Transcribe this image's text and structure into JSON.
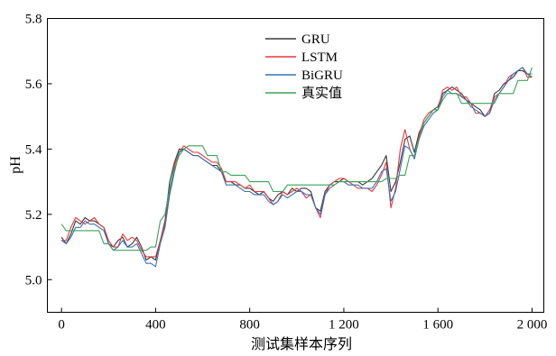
{
  "chart_data": {
    "type": "line",
    "xlabel": "测试集样本序列",
    "ylabel": "pH",
    "xlim": [
      -60,
      2050
    ],
    "ylim": [
      4.9,
      5.8
    ],
    "xticks": [
      0,
      400,
      800,
      1200,
      1600,
      2000
    ],
    "xtick_labels": [
      "0",
      "400",
      "800",
      "1 200",
      "1 600",
      "2 000"
    ],
    "yticks": [
      5.0,
      5.2,
      5.4,
      5.6,
      5.8
    ],
    "ytick_labels": [
      "5.0",
      "5.2",
      "5.4",
      "5.6",
      "5.8"
    ],
    "legend": "top-center",
    "grid": false,
    "x": [
      0,
      20,
      40,
      60,
      80,
      100,
      120,
      140,
      160,
      180,
      200,
      220,
      240,
      260,
      280,
      300,
      320,
      340,
      360,
      380,
      400,
      420,
      440,
      460,
      480,
      500,
      520,
      540,
      560,
      580,
      600,
      620,
      640,
      660,
      680,
      700,
      720,
      740,
      760,
      780,
      800,
      820,
      840,
      860,
      880,
      900,
      920,
      940,
      960,
      980,
      1000,
      1020,
      1040,
      1060,
      1080,
      1100,
      1120,
      1140,
      1160,
      1180,
      1200,
      1220,
      1240,
      1260,
      1280,
      1300,
      1320,
      1340,
      1360,
      1380,
      1400,
      1420,
      1440,
      1460,
      1480,
      1500,
      1520,
      1540,
      1560,
      1580,
      1600,
      1620,
      1640,
      1660,
      1680,
      1700,
      1720,
      1740,
      1760,
      1780,
      1800,
      1820,
      1840,
      1860,
      1880,
      1900,
      1920,
      1940,
      1960,
      1980,
      2000
    ],
    "series": [
      {
        "name": "GRU",
        "color": "#3a3a3a",
        "values": [
          5.13,
          5.11,
          5.14,
          5.18,
          5.17,
          5.19,
          5.18,
          5.18,
          5.17,
          5.16,
          5.11,
          5.1,
          5.12,
          5.13,
          5.1,
          5.11,
          5.13,
          5.1,
          5.06,
          5.07,
          5.06,
          5.12,
          5.18,
          5.3,
          5.36,
          5.4,
          5.4,
          5.39,
          5.38,
          5.38,
          5.37,
          5.36,
          5.35,
          5.35,
          5.33,
          5.3,
          5.3,
          5.29,
          5.29,
          5.28,
          5.28,
          5.27,
          5.26,
          5.27,
          5.25,
          5.24,
          5.26,
          5.27,
          5.26,
          5.28,
          5.27,
          5.28,
          5.28,
          5.27,
          5.22,
          5.21,
          5.27,
          5.29,
          5.3,
          5.3,
          5.31,
          5.3,
          5.3,
          5.3,
          5.29,
          5.3,
          5.31,
          5.33,
          5.35,
          5.38,
          5.27,
          5.3,
          5.36,
          5.43,
          5.44,
          5.39,
          5.45,
          5.48,
          5.5,
          5.52,
          5.53,
          5.57,
          5.58,
          5.59,
          5.58,
          5.57,
          5.55,
          5.54,
          5.53,
          5.52,
          5.5,
          5.51,
          5.57,
          5.58,
          5.6,
          5.61,
          5.62,
          5.64,
          5.64,
          5.63,
          5.62
        ]
      },
      {
        "name": "LSTM",
        "color": "#e8393a",
        "values": [
          5.12,
          5.12,
          5.16,
          5.19,
          5.18,
          5.17,
          5.18,
          5.19,
          5.17,
          5.16,
          5.12,
          5.1,
          5.1,
          5.14,
          5.12,
          5.13,
          5.12,
          5.09,
          5.07,
          5.07,
          5.07,
          5.12,
          5.17,
          5.27,
          5.35,
          5.39,
          5.41,
          5.4,
          5.39,
          5.39,
          5.38,
          5.37,
          5.36,
          5.36,
          5.34,
          5.3,
          5.3,
          5.3,
          5.29,
          5.28,
          5.29,
          5.27,
          5.27,
          5.27,
          5.25,
          5.23,
          5.24,
          5.27,
          5.26,
          5.27,
          5.28,
          5.27,
          5.25,
          5.26,
          5.22,
          5.19,
          5.26,
          5.29,
          5.3,
          5.31,
          5.31,
          5.3,
          5.29,
          5.28,
          5.28,
          5.28,
          5.27,
          5.29,
          5.32,
          5.36,
          5.22,
          5.28,
          5.4,
          5.46,
          5.4,
          5.37,
          5.44,
          5.49,
          5.51,
          5.52,
          5.52,
          5.58,
          5.59,
          5.58,
          5.59,
          5.56,
          5.56,
          5.54,
          5.51,
          5.51,
          5.5,
          5.52,
          5.56,
          5.57,
          5.59,
          5.62,
          5.63,
          5.64,
          5.65,
          5.62,
          5.62
        ]
      },
      {
        "name": "BiGRU",
        "color": "#3574bd",
        "values": [
          5.12,
          5.11,
          5.13,
          5.16,
          5.16,
          5.18,
          5.17,
          5.17,
          5.16,
          5.15,
          5.11,
          5.09,
          5.1,
          5.12,
          5.1,
          5.1,
          5.11,
          5.08,
          5.05,
          5.05,
          5.04,
          5.11,
          5.16,
          5.26,
          5.33,
          5.39,
          5.4,
          5.39,
          5.38,
          5.38,
          5.37,
          5.36,
          5.35,
          5.34,
          5.33,
          5.29,
          5.29,
          5.29,
          5.28,
          5.27,
          5.27,
          5.26,
          5.26,
          5.26,
          5.24,
          5.23,
          5.24,
          5.26,
          5.25,
          5.26,
          5.27,
          5.27,
          5.26,
          5.26,
          5.22,
          5.2,
          5.26,
          5.28,
          5.29,
          5.3,
          5.3,
          5.29,
          5.29,
          5.29,
          5.28,
          5.28,
          5.28,
          5.3,
          5.33,
          5.34,
          5.24,
          5.27,
          5.34,
          5.41,
          5.4,
          5.37,
          5.43,
          5.47,
          5.49,
          5.51,
          5.52,
          5.56,
          5.58,
          5.57,
          5.57,
          5.56,
          5.55,
          5.53,
          5.52,
          5.51,
          5.5,
          5.51,
          5.55,
          5.57,
          5.59,
          5.61,
          5.63,
          5.64,
          5.65,
          5.63,
          5.63
        ]
      },
      {
        "name": "真实值",
        "color": "#3aa35a",
        "values": [
          5.17,
          5.15,
          5.15,
          5.15,
          5.15,
          5.15,
          5.15,
          5.15,
          5.15,
          5.11,
          5.11,
          5.09,
          5.09,
          5.09,
          5.09,
          5.09,
          5.09,
          5.09,
          5.09,
          5.1,
          5.1,
          5.18,
          5.2,
          5.28,
          5.34,
          5.38,
          5.4,
          5.41,
          5.41,
          5.41,
          5.41,
          5.38,
          5.38,
          5.38,
          5.33,
          5.33,
          5.32,
          5.32,
          5.32,
          5.32,
          5.3,
          5.3,
          5.3,
          5.3,
          5.3,
          5.27,
          5.27,
          5.27,
          5.29,
          5.29,
          5.29,
          5.29,
          5.29,
          5.29,
          5.29,
          5.29,
          5.29,
          5.29,
          5.29,
          5.3,
          5.3,
          5.3,
          5.3,
          5.3,
          5.3,
          5.3,
          5.3,
          5.3,
          5.3,
          5.31,
          5.31,
          5.31,
          5.32,
          5.32,
          5.38,
          5.38,
          5.43,
          5.48,
          5.5,
          5.52,
          5.52,
          5.55,
          5.57,
          5.57,
          5.57,
          5.54,
          5.54,
          5.54,
          5.54,
          5.54,
          5.54,
          5.54,
          5.54,
          5.57,
          5.57,
          5.57,
          5.57,
          5.61,
          5.61,
          5.61,
          5.65
        ]
      }
    ]
  }
}
